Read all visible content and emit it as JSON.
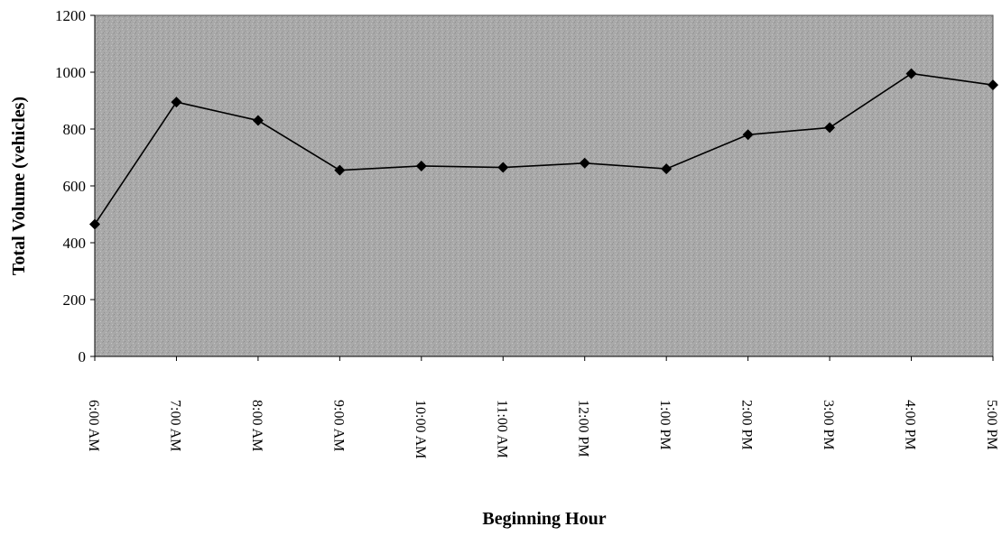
{
  "chart_data": {
    "type": "line",
    "xlabel": "Beginning Hour",
    "ylabel": "Total Volume (vehicles)",
    "categories": [
      "6:00 AM",
      "7:00 AM",
      "8:00 AM",
      "9:00 AM",
      "10:00 AM",
      "11:00 AM",
      "12:00 PM",
      "1:00 PM",
      "2:00 PM",
      "3:00 PM",
      "4:00 PM",
      "5:00 PM"
    ],
    "series": [
      {
        "values": [
          465,
          895,
          830,
          655,
          670,
          665,
          680,
          660,
          780,
          805,
          995,
          955
        ]
      }
    ],
    "ylim": [
      0,
      1200
    ],
    "yticks": [
      0,
      200,
      400,
      600,
      800,
      1000,
      1200
    ],
    "grid": false,
    "legend": "none",
    "plot_background": "#a8a8a8",
    "line_color": "#000000",
    "marker": "diamond"
  }
}
